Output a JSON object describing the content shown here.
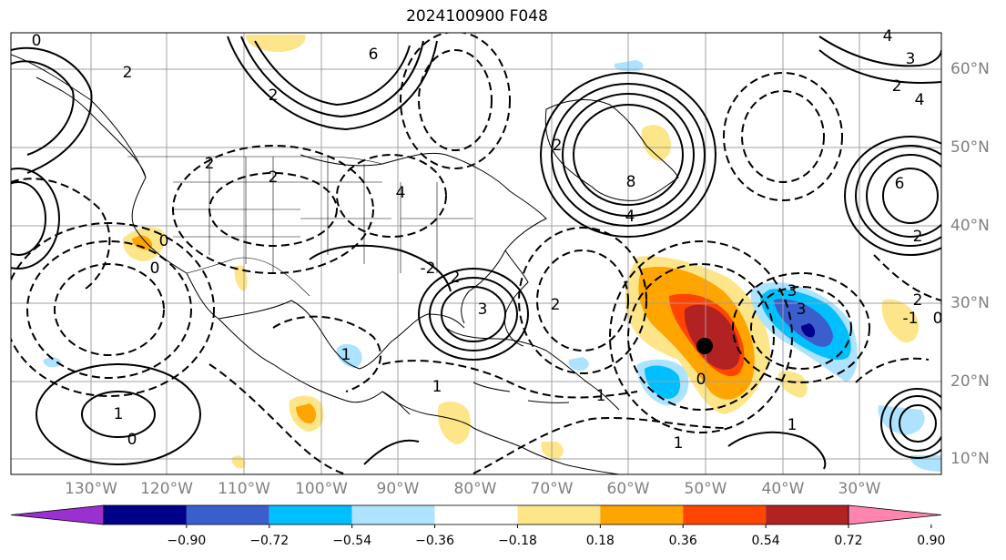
{
  "title": "2024100900 F048",
  "lon_labels": [
    "130°W",
    "120°W",
    "110°W",
    "100°W",
    "90°W",
    "80°W",
    "70°W",
    "60°W",
    "50°W",
    "40°W",
    "30°W"
  ],
  "lat_labels": [
    "60°N",
    "50°N",
    "40°N",
    "30°N",
    "20°N",
    "10°N"
  ],
  "colorbar": {
    "ticks": [
      "−0.90",
      "−0.72",
      "−0.54",
      "−0.36",
      "−0.18",
      "0.18",
      "0.36",
      "0.54",
      "0.72",
      "0.90"
    ],
    "colors": [
      "#9b30d0",
      "#00008b",
      "#3a5fcd",
      "#00bfff",
      "#aee3ff",
      "#ffffff",
      "#fde68a",
      "#ffa500",
      "#ff4500",
      "#b22222",
      "#ff85b0"
    ]
  },
  "contour_labels": [
    "2",
    "2",
    "4",
    "6",
    "0",
    "3",
    "2",
    "4",
    "8",
    "2",
    "4",
    "2",
    "2",
    "2",
    "0",
    "2",
    "3",
    "1",
    "0",
    "1",
    "4",
    "2",
    "-2",
    "3",
    "3",
    "0",
    "1",
    "1",
    "1",
    "0",
    "-1",
    "2",
    "0",
    "1",
    "6"
  ]
}
